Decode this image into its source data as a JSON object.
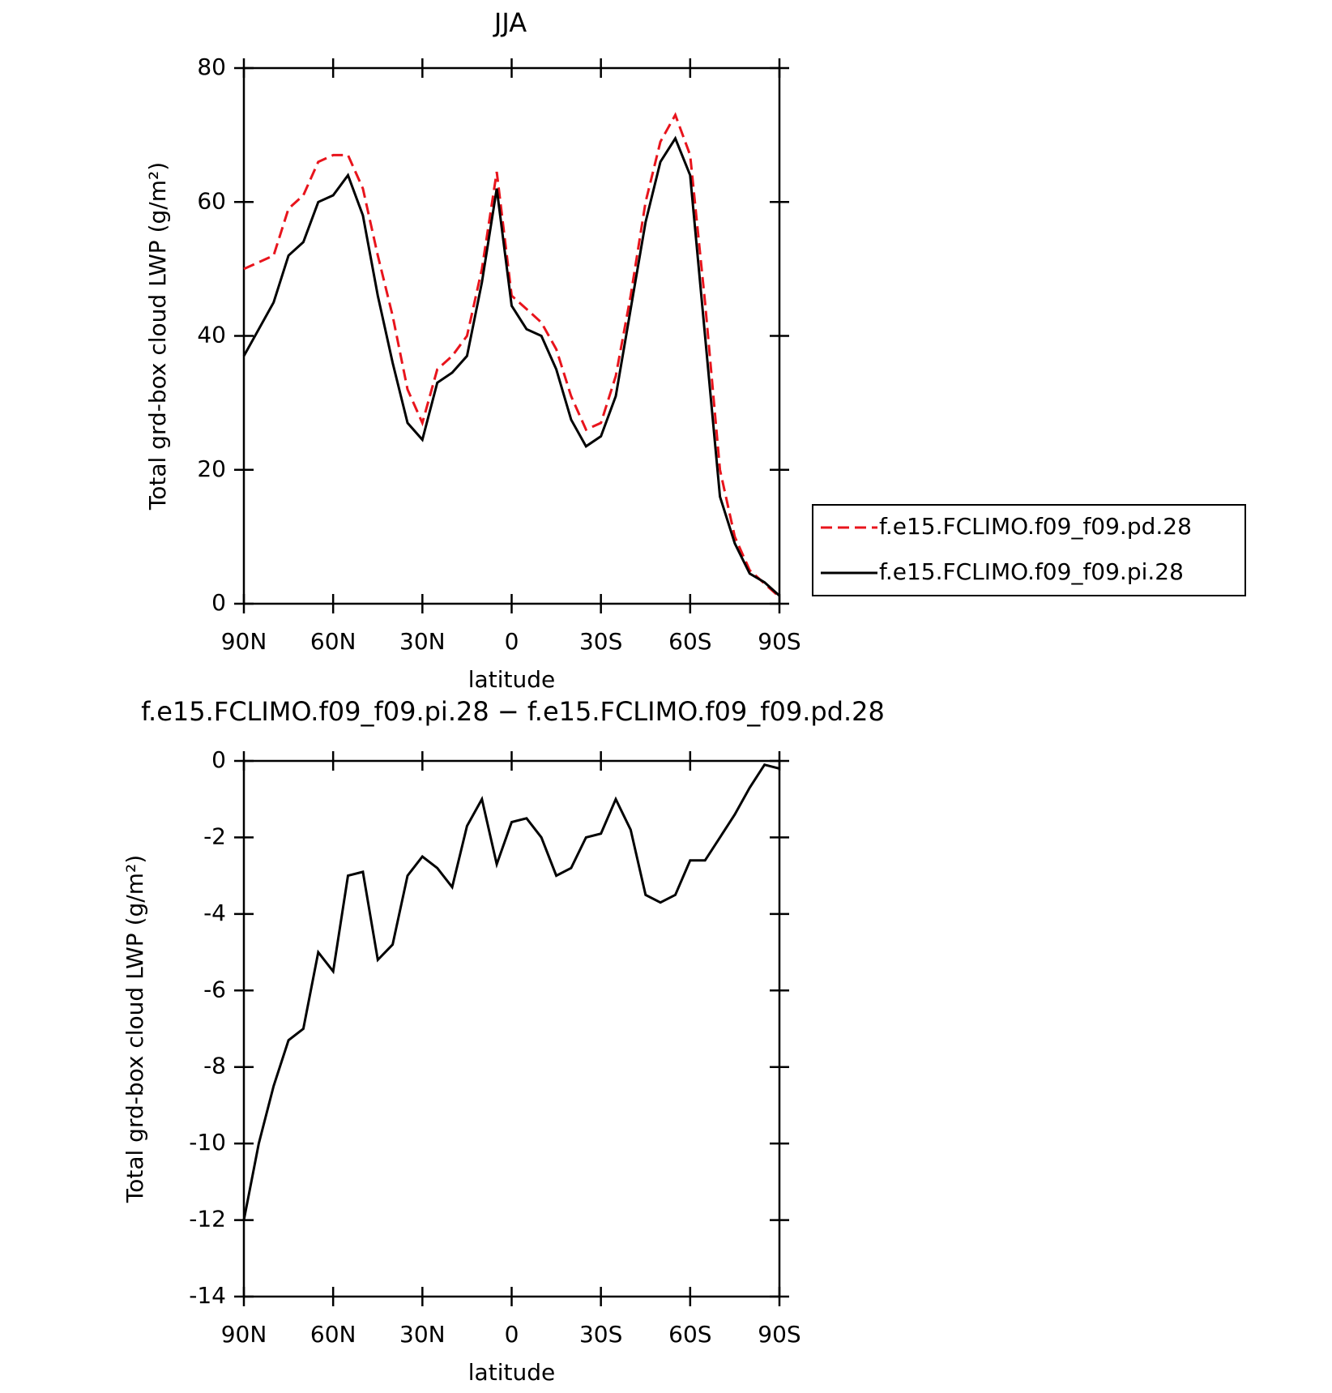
{
  "chart_data": [
    {
      "type": "line",
      "title": "JJA",
      "xlabel": "latitude",
      "ylabel": "Total grd-box cloud LWP (g/m²)",
      "x": [
        90,
        85,
        80,
        75,
        70,
        65,
        60,
        55,
        50,
        45,
        40,
        35,
        30,
        25,
        20,
        15,
        10,
        5,
        0,
        -5,
        -10,
        -15,
        -20,
        -25,
        -30,
        -35,
        -40,
        -45,
        -50,
        -55,
        -60,
        -65,
        -70,
        -75,
        -80,
        -85,
        -90
      ],
      "xlim": [
        90,
        -90
      ],
      "xticks": [
        {
          "value": 90,
          "label": "90N"
        },
        {
          "value": 60,
          "label": "60N"
        },
        {
          "value": 30,
          "label": "30N"
        },
        0,
        {
          "value": -30,
          "label": "30S"
        },
        {
          "value": -60,
          "label": "60S"
        },
        {
          "value": -90,
          "label": "90S"
        }
      ],
      "ylim": [
        0,
        80
      ],
      "yticks": [
        0,
        20,
        40,
        60,
        80
      ],
      "legend": "right",
      "series": [
        {
          "name": "f.e15.FCLIMO.f09_f09.pd.28",
          "color": "#e8141c",
          "dash": true,
          "values": [
            50,
            51,
            52,
            59,
            61,
            66,
            67,
            67,
            62,
            52,
            43,
            32,
            27,
            35,
            37,
            40,
            50,
            64.5,
            46,
            44,
            42,
            38,
            31,
            26,
            27,
            34,
            46,
            60,
            69,
            73,
            67,
            45,
            20,
            10,
            5,
            3,
            1
          ]
        },
        {
          "name": "f.e15.FCLIMO.f09_f09.pi.28",
          "color": "#000000",
          "dash": false,
          "values": [
            37,
            41,
            45,
            52,
            54,
            60,
            61,
            64,
            58,
            46,
            36,
            27,
            24.5,
            33,
            34.5,
            37,
            48,
            62,
            44.5,
            41,
            40,
            35,
            27.5,
            23.5,
            25,
            31,
            44,
            57,
            66,
            69.5,
            64,
            40,
            16,
            9,
            4.5,
            3.2,
            1.2
          ]
        }
      ]
    },
    {
      "type": "line",
      "title": "f.e15.FCLIMO.f09_f09.pi.28 − f.e15.FCLIMO.f09_f09.pd.28",
      "xlabel": "latitude",
      "ylabel": "Total grd-box cloud LWP (g/m²)",
      "x": [
        90,
        85,
        80,
        75,
        70,
        65,
        60,
        55,
        50,
        45,
        40,
        35,
        30,
        25,
        20,
        15,
        10,
        5,
        0,
        -5,
        -10,
        -15,
        -20,
        -25,
        -30,
        -35,
        -40,
        -45,
        -50,
        -55,
        -60,
        -65,
        -70,
        -75,
        -80,
        -85,
        -90
      ],
      "xlim": [
        90,
        -90
      ],
      "xticks": [
        {
          "value": 90,
          "label": "90N"
        },
        {
          "value": 60,
          "label": "60N"
        },
        {
          "value": 30,
          "label": "30N"
        },
        0,
        {
          "value": -30,
          "label": "30S"
        },
        {
          "value": -60,
          "label": "60S"
        },
        {
          "value": -90,
          "label": "90S"
        }
      ],
      "ylim": [
        -14,
        0
      ],
      "yticks": [
        -14,
        -12,
        -10,
        -8,
        -6,
        -4,
        -2,
        0
      ],
      "series": [
        {
          "color": "#000000",
          "dash": false,
          "values": [
            -12,
            -10,
            -8.5,
            -7.3,
            -7.0,
            -5,
            -5.5,
            -3,
            -2.9,
            -5.2,
            -4.8,
            -3.0,
            -2.5,
            -2.8,
            -3.3,
            -1.7,
            -1.0,
            -2.7,
            -1.6,
            -1.5,
            -2.0,
            -3.0,
            -2.8,
            -2.0,
            -1.9,
            -1.0,
            -1.8,
            -3.5,
            -3.7,
            -3.5,
            -2.6,
            -2.6,
            -2.0,
            -1.4,
            -0.7,
            -0.1,
            -0.2
          ]
        }
      ]
    }
  ]
}
